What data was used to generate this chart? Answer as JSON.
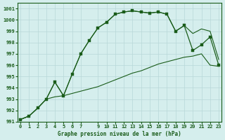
{
  "xlabel": "Graphe pression niveau de la mer (hPa)",
  "ylim": [
    991,
    1001.5
  ],
  "xlim": [
    -0.3,
    23.3
  ],
  "yticks": [
    991,
    992,
    993,
    994,
    995,
    996,
    997,
    998,
    999,
    1000,
    1001
  ],
  "xticks": [
    0,
    1,
    2,
    3,
    4,
    5,
    6,
    7,
    9,
    10,
    11,
    12,
    13,
    14,
    15,
    16,
    17,
    18,
    19,
    20,
    21,
    22,
    23
  ],
  "bg_color": "#d5eeed",
  "grid_color": "#b8d8d8",
  "line_color": "#1a5c1a",
  "marker_color": "#1a5c1a",
  "hours": [
    0,
    1,
    2,
    3,
    4,
    5,
    6,
    7,
    8,
    9,
    10,
    11,
    12,
    13,
    14,
    15,
    16,
    17,
    18,
    19,
    20,
    21,
    22,
    23
  ],
  "pressure_main": [
    991.2,
    991.5,
    992.2,
    993.0,
    994.5,
    993.3,
    995.2,
    997.0,
    998.2,
    999.3,
    999.8,
    1000.5,
    1000.7,
    1000.8,
    1000.7,
    1000.6,
    1000.7,
    1000.5,
    999.0,
    999.5,
    997.3,
    997.8,
    998.5,
    996.0
  ],
  "pressure_min": [
    991.2,
    991.5,
    992.2,
    993.0,
    993.2,
    993.3,
    993.5,
    993.7,
    993.9,
    994.1,
    994.4,
    994.7,
    995.0,
    995.3,
    995.5,
    995.8,
    996.1,
    996.3,
    996.5,
    996.7,
    996.8,
    997.0,
    996.0,
    995.9
  ],
  "pressure_max": [
    991.2,
    991.5,
    992.2,
    993.0,
    994.5,
    993.3,
    995.2,
    997.0,
    998.2,
    999.3,
    999.8,
    1000.5,
    1000.7,
    1000.8,
    1000.7,
    1000.6,
    1000.7,
    1000.5,
    999.0,
    999.5,
    998.8,
    999.2,
    999.0,
    996.5
  ]
}
